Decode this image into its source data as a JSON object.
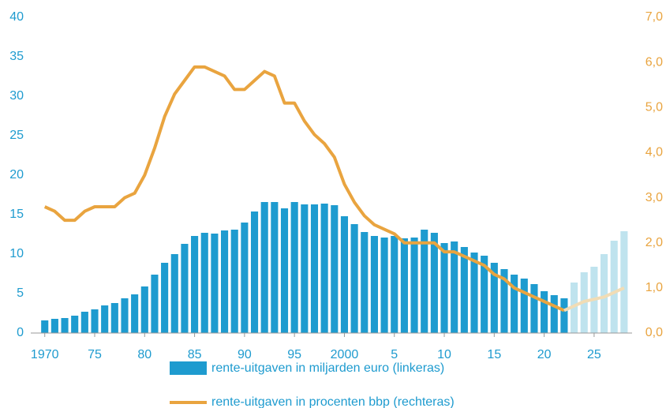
{
  "chart_data": {
    "type": "bar+line",
    "x": [
      1970,
      1971,
      1972,
      1973,
      1974,
      1975,
      1976,
      1977,
      1978,
      1979,
      1980,
      1981,
      1982,
      1983,
      1984,
      1985,
      1986,
      1987,
      1988,
      1989,
      1990,
      1991,
      1992,
      1993,
      1994,
      1995,
      1996,
      1997,
      1998,
      1999,
      2000,
      2001,
      2002,
      2003,
      2004,
      2005,
      2006,
      2007,
      2008,
      2009,
      2010,
      2011,
      2012,
      2013,
      2014,
      2015,
      2016,
      2017,
      2018,
      2019,
      2020,
      2021,
      2022,
      2023,
      2024,
      2025,
      2026,
      2027,
      2028
    ],
    "series": [
      {
        "name": "rente-uitgaven in miljarden euro (linkeras)",
        "type": "bar",
        "color": "#1e9bcf",
        "projection_color": "#bfe3ee",
        "values": [
          1.6,
          1.8,
          1.9,
          2.2,
          2.7,
          3.0,
          3.5,
          3.8,
          4.4,
          4.9,
          5.9,
          7.4,
          8.9,
          10.0,
          11.3,
          12.3,
          12.7,
          12.6,
          13.0,
          13.1,
          14.0,
          15.4,
          16.6,
          16.6,
          15.8,
          16.6,
          16.3,
          16.3,
          16.4,
          16.2,
          14.8,
          13.8,
          12.8,
          12.3,
          12.1,
          12.3,
          12.0,
          12.1,
          13.1,
          12.7,
          11.4,
          11.6,
          10.9,
          10.2,
          9.8,
          8.9,
          8.1,
          7.4,
          6.9,
          6.2,
          5.3,
          4.8,
          4.4,
          6.4,
          7.7,
          8.4,
          10.0,
          11.7,
          12.9
        ]
      },
      {
        "name": "rente-uitgaven in procenten bbp (rechteras)",
        "type": "line",
        "axis": "y2",
        "color": "#e9a43f",
        "projection_color": "#f1dcb5",
        "values": [
          2.8,
          2.7,
          2.5,
          2.5,
          2.7,
          2.8,
          2.8,
          2.8,
          3.0,
          3.1,
          3.5,
          4.1,
          4.8,
          5.3,
          5.6,
          5.9,
          5.9,
          5.8,
          5.7,
          5.4,
          5.4,
          5.6,
          5.8,
          5.7,
          5.1,
          5.1,
          4.7,
          4.4,
          4.2,
          3.9,
          3.3,
          2.9,
          2.6,
          2.4,
          2.3,
          2.2,
          2.0,
          2.0,
          2.0,
          2.0,
          1.8,
          1.8,
          1.7,
          1.6,
          1.5,
          1.3,
          1.2,
          1.0,
          0.9,
          0.8,
          0.7,
          0.6,
          0.5,
          0.6,
          0.7,
          0.75,
          0.8,
          0.9,
          1.0
        ]
      }
    ],
    "projection_from": 2023,
    "xlim": [
      1968.6,
      2028.8
    ],
    "xticks": [
      1970,
      {
        "value": 1975,
        "label": "75"
      },
      {
        "value": 1980,
        "label": "80"
      },
      {
        "value": 1985,
        "label": "85"
      },
      {
        "value": 1990,
        "label": "90"
      },
      {
        "value": 1995,
        "label": "95"
      },
      2000,
      {
        "value": 2005,
        "label": "5"
      },
      {
        "value": 2010,
        "label": "10"
      },
      {
        "value": 2015,
        "label": "15"
      },
      {
        "value": 2020,
        "label": "20"
      },
      {
        "value": 2025,
        "label": "25"
      }
    ],
    "ylim": [
      0,
      40
    ],
    "yticks": [
      0,
      5,
      10,
      15,
      20,
      25,
      30,
      35,
      40
    ],
    "ytick_color": "#1e9bcf",
    "y2lim": [
      0,
      7
    ],
    "y2ticks": [
      {
        "value": 0,
        "label": "0,0"
      },
      {
        "value": 1,
        "label": "1,0"
      },
      {
        "value": 2,
        "label": "2,0"
      },
      {
        "value": 3,
        "label": "3,0"
      },
      {
        "value": 4,
        "label": "4,0"
      },
      {
        "value": 5,
        "label": "5,0"
      },
      {
        "value": 6,
        "label": "6,0"
      },
      {
        "value": 7,
        "label": "7,0"
      }
    ],
    "y2tick_color": "#e9a43f"
  }
}
